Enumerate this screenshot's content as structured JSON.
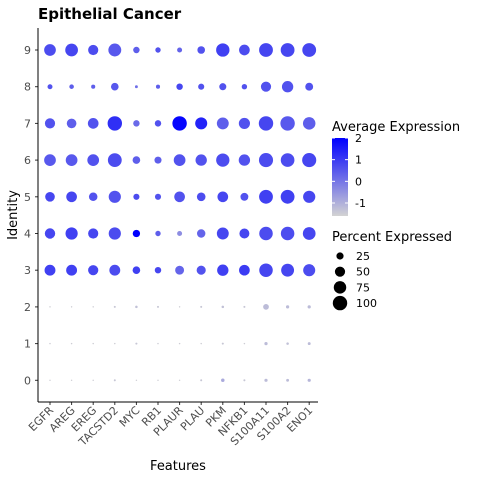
{
  "chart_data": {
    "type": "dotplot",
    "title": "Epithelial Cancer",
    "xlabel": "Features",
    "ylabel": "Identity",
    "features": [
      "EGFR",
      "AREG",
      "EREG",
      "TACSTD2",
      "MYC",
      "RB1",
      "PLAUR",
      "PLAU",
      "PKM",
      "NFKB1",
      "S100A11",
      "S100A2",
      "ENO1"
    ],
    "identities": [
      "0",
      "1",
      "2",
      "3",
      "4",
      "5",
      "6",
      "7",
      "8",
      "9"
    ],
    "color_scale": {
      "name": "Average Expression",
      "low_color": "#D3D3D3",
      "high_color": "#0000FF",
      "range": [
        -1.6,
        2.0
      ],
      "ticks": [
        2,
        1,
        0,
        -1
      ]
    },
    "size_scale": {
      "name": "Percent Expressed",
      "range": [
        0,
        100
      ],
      "ticks": [
        25,
        50,
        75,
        100
      ]
    },
    "grid": false,
    "legend_position": "right",
    "points": [
      {
        "feature": "EGFR",
        "identity": "0",
        "pct": 1,
        "avg": -1.5
      },
      {
        "feature": "AREG",
        "identity": "0",
        "pct": 1,
        "avg": -1.5
      },
      {
        "feature": "EREG",
        "identity": "0",
        "pct": 1,
        "avg": -1.5
      },
      {
        "feature": "TACSTD2",
        "identity": "0",
        "pct": 2,
        "avg": -1.4
      },
      {
        "feature": "MYC",
        "identity": "0",
        "pct": 1,
        "avg": -1.5
      },
      {
        "feature": "RB1",
        "identity": "0",
        "pct": 1,
        "avg": -1.5
      },
      {
        "feature": "PLAUR",
        "identity": "0",
        "pct": 1,
        "avg": -1.5
      },
      {
        "feature": "PLAU",
        "identity": "0",
        "pct": 2,
        "avg": -1.4
      },
      {
        "feature": "PKM",
        "identity": "0",
        "pct": 6,
        "avg": -0.9
      },
      {
        "feature": "NFKB1",
        "identity": "0",
        "pct": 2,
        "avg": -1.4
      },
      {
        "feature": "S100A11",
        "identity": "0",
        "pct": 5,
        "avg": -1.2
      },
      {
        "feature": "S100A2",
        "identity": "0",
        "pct": 4,
        "avg": -1.2
      },
      {
        "feature": "ENO1",
        "identity": "0",
        "pct": 5,
        "avg": -1.1
      },
      {
        "feature": "EGFR",
        "identity": "1",
        "pct": 1,
        "avg": -1.5
      },
      {
        "feature": "AREG",
        "identity": "1",
        "pct": 1,
        "avg": -1.5
      },
      {
        "feature": "EREG",
        "identity": "1",
        "pct": 1,
        "avg": -1.5
      },
      {
        "feature": "TACSTD2",
        "identity": "1",
        "pct": 1,
        "avg": -1.5
      },
      {
        "feature": "MYC",
        "identity": "1",
        "pct": 2,
        "avg": -1.4
      },
      {
        "feature": "RB1",
        "identity": "1",
        "pct": 1,
        "avg": -1.5
      },
      {
        "feature": "PLAUR",
        "identity": "1",
        "pct": 1,
        "avg": -1.5
      },
      {
        "feature": "PLAU",
        "identity": "1",
        "pct": 1,
        "avg": -1.5
      },
      {
        "feature": "PKM",
        "identity": "1",
        "pct": 2,
        "avg": -1.4
      },
      {
        "feature": "NFKB1",
        "identity": "1",
        "pct": 1,
        "avg": -1.5
      },
      {
        "feature": "S100A11",
        "identity": "1",
        "pct": 5,
        "avg": -1.2
      },
      {
        "feature": "S100A2",
        "identity": "1",
        "pct": 3,
        "avg": -1.3
      },
      {
        "feature": "ENO1",
        "identity": "1",
        "pct": 4,
        "avg": -1.2
      },
      {
        "feature": "EGFR",
        "identity": "2",
        "pct": 1,
        "avg": -1.5
      },
      {
        "feature": "AREG",
        "identity": "2",
        "pct": 1,
        "avg": -1.5
      },
      {
        "feature": "EREG",
        "identity": "2",
        "pct": 1,
        "avg": -1.5
      },
      {
        "feature": "TACSTD2",
        "identity": "2",
        "pct": 2,
        "avg": -1.4
      },
      {
        "feature": "MYC",
        "identity": "2",
        "pct": 3,
        "avg": -1.3
      },
      {
        "feature": "RB1",
        "identity": "2",
        "pct": 2,
        "avg": -1.4
      },
      {
        "feature": "PLAUR",
        "identity": "2",
        "pct": 1,
        "avg": -1.5
      },
      {
        "feature": "PLAU",
        "identity": "2",
        "pct": 2,
        "avg": -1.4
      },
      {
        "feature": "PKM",
        "identity": "2",
        "pct": 3,
        "avg": -1.3
      },
      {
        "feature": "NFKB1",
        "identity": "2",
        "pct": 2,
        "avg": -1.4
      },
      {
        "feature": "S100A11",
        "identity": "2",
        "pct": 16,
        "avg": -1.2
      },
      {
        "feature": "S100A2",
        "identity": "2",
        "pct": 5,
        "avg": -1.2
      },
      {
        "feature": "ENO1",
        "identity": "2",
        "pct": 5,
        "avg": -1.2
      },
      {
        "feature": "EGFR",
        "identity": "3",
        "pct": 57,
        "avg": 0.9
      },
      {
        "feature": "AREG",
        "identity": "3",
        "pct": 57,
        "avg": 0.9
      },
      {
        "feature": "EREG",
        "identity": "3",
        "pct": 50,
        "avg": 0.8
      },
      {
        "feature": "TACSTD2",
        "identity": "3",
        "pct": 57,
        "avg": 0.7
      },
      {
        "feature": "MYC",
        "identity": "3",
        "pct": 28,
        "avg": 0.9
      },
      {
        "feature": "RB1",
        "identity": "3",
        "pct": 20,
        "avg": 0.8
      },
      {
        "feature": "PLAUR",
        "identity": "3",
        "pct": 38,
        "avg": 0.3
      },
      {
        "feature": "PLAU",
        "identity": "3",
        "pct": 40,
        "avg": 0.6
      },
      {
        "feature": "PKM",
        "identity": "3",
        "pct": 62,
        "avg": 0.9
      },
      {
        "feature": "NFKB1",
        "identity": "3",
        "pct": 55,
        "avg": 1.0
      },
      {
        "feature": "S100A11",
        "identity": "3",
        "pct": 88,
        "avg": 0.8
      },
      {
        "feature": "S100A2",
        "identity": "3",
        "pct": 80,
        "avg": 0.8
      },
      {
        "feature": "ENO1",
        "identity": "3",
        "pct": 70,
        "avg": 0.7
      },
      {
        "feature": "EGFR",
        "identity": "4",
        "pct": 52,
        "avg": 0.8
      },
      {
        "feature": "AREG",
        "identity": "4",
        "pct": 72,
        "avg": 0.9
      },
      {
        "feature": "EREG",
        "identity": "4",
        "pct": 50,
        "avg": 0.8
      },
      {
        "feature": "TACSTD2",
        "identity": "4",
        "pct": 72,
        "avg": 0.7
      },
      {
        "feature": "MYC",
        "identity": "4",
        "pct": 26,
        "avg": 2.0
      },
      {
        "feature": "RB1",
        "identity": "4",
        "pct": 14,
        "avg": 0.4
      },
      {
        "feature": "PLAUR",
        "identity": "4",
        "pct": 12,
        "avg": -0.4
      },
      {
        "feature": "PLAU",
        "identity": "4",
        "pct": 34,
        "avg": 0.3
      },
      {
        "feature": "PKM",
        "identity": "4",
        "pct": 68,
        "avg": 0.8
      },
      {
        "feature": "NFKB1",
        "identity": "4",
        "pct": 48,
        "avg": 0.8
      },
      {
        "feature": "S100A11",
        "identity": "4",
        "pct": 88,
        "avg": 0.7
      },
      {
        "feature": "S100A2",
        "identity": "4",
        "pct": 88,
        "avg": 0.7
      },
      {
        "feature": "ENO1",
        "identity": "4",
        "pct": 78,
        "avg": 0.8
      },
      {
        "feature": "EGFR",
        "identity": "5",
        "pct": 45,
        "avg": 0.8
      },
      {
        "feature": "AREG",
        "identity": "5",
        "pct": 55,
        "avg": 0.8
      },
      {
        "feature": "EREG",
        "identity": "5",
        "pct": 35,
        "avg": 0.6
      },
      {
        "feature": "TACSTD2",
        "identity": "5",
        "pct": 72,
        "avg": 0.6
      },
      {
        "feature": "MYC",
        "identity": "5",
        "pct": 18,
        "avg": 0.7
      },
      {
        "feature": "RB1",
        "identity": "5",
        "pct": 18,
        "avg": 0.6
      },
      {
        "feature": "PLAUR",
        "identity": "5",
        "pct": 55,
        "avg": 0.6
      },
      {
        "feature": "PLAU",
        "identity": "5",
        "pct": 36,
        "avg": 0.7
      },
      {
        "feature": "PKM",
        "identity": "5",
        "pct": 55,
        "avg": 0.8
      },
      {
        "feature": "NFKB1",
        "identity": "5",
        "pct": 30,
        "avg": 0.6
      },
      {
        "feature": "S100A11",
        "identity": "5",
        "pct": 92,
        "avg": 0.9
      },
      {
        "feature": "S100A2",
        "identity": "5",
        "pct": 92,
        "avg": 0.9
      },
      {
        "feature": "ENO1",
        "identity": "5",
        "pct": 72,
        "avg": 0.8
      },
      {
        "feature": "EGFR",
        "identity": "6",
        "pct": 66,
        "avg": 0.5
      },
      {
        "feature": "AREG",
        "identity": "6",
        "pct": 66,
        "avg": 0.5
      },
      {
        "feature": "EREG",
        "identity": "6",
        "pct": 66,
        "avg": 0.6
      },
      {
        "feature": "TACSTD2",
        "identity": "6",
        "pct": 92,
        "avg": 0.7
      },
      {
        "feature": "MYC",
        "identity": "6",
        "pct": 28,
        "avg": 0.4
      },
      {
        "feature": "RB1",
        "identity": "6",
        "pct": 24,
        "avg": 0.4
      },
      {
        "feature": "PLAUR",
        "identity": "6",
        "pct": 66,
        "avg": 0.6
      },
      {
        "feature": "PLAU",
        "identity": "6",
        "pct": 62,
        "avg": 0.6
      },
      {
        "feature": "PKM",
        "identity": "6",
        "pct": 85,
        "avg": 0.7
      },
      {
        "feature": "NFKB1",
        "identity": "6",
        "pct": 62,
        "avg": 0.6
      },
      {
        "feature": "S100A11",
        "identity": "6",
        "pct": 96,
        "avg": 0.7
      },
      {
        "feature": "S100A2",
        "identity": "6",
        "pct": 90,
        "avg": 0.7
      },
      {
        "feature": "ENO1",
        "identity": "6",
        "pct": 96,
        "avg": 0.8
      },
      {
        "feature": "EGFR",
        "identity": "7",
        "pct": 50,
        "avg": 0.6
      },
      {
        "feature": "AREG",
        "identity": "7",
        "pct": 45,
        "avg": 0.4
      },
      {
        "feature": "EREG",
        "identity": "7",
        "pct": 55,
        "avg": 0.6
      },
      {
        "feature": "TACSTD2",
        "identity": "7",
        "pct": 100,
        "avg": 1.2
      },
      {
        "feature": "MYC",
        "identity": "7",
        "pct": 20,
        "avg": 0.2
      },
      {
        "feature": "RB1",
        "identity": "7",
        "pct": 20,
        "avg": 0.6
      },
      {
        "feature": "PLAUR",
        "identity": "7",
        "pct": 100,
        "avg": 1.9
      },
      {
        "feature": "PLAU",
        "identity": "7",
        "pct": 70,
        "avg": 1.4
      },
      {
        "feature": "PKM",
        "identity": "7",
        "pct": 68,
        "avg": 0.4
      },
      {
        "feature": "NFKB1",
        "identity": "7",
        "pct": 60,
        "avg": 0.6
      },
      {
        "feature": "S100A11",
        "identity": "7",
        "pct": 100,
        "avg": 0.8
      },
      {
        "feature": "S100A2",
        "identity": "7",
        "pct": 100,
        "avg": 0.5
      },
      {
        "feature": "ENO1",
        "identity": "7",
        "pct": 75,
        "avg": 0.4
      },
      {
        "feature": "EGFR",
        "identity": "8",
        "pct": 12,
        "avg": 0.6
      },
      {
        "feature": "AREG",
        "identity": "8",
        "pct": 10,
        "avg": 0.4
      },
      {
        "feature": "EREG",
        "identity": "8",
        "pct": 8,
        "avg": 0.4
      },
      {
        "feature": "TACSTD2",
        "identity": "8",
        "pct": 28,
        "avg": 0.5
      },
      {
        "feature": "MYC",
        "identity": "8",
        "pct": 4,
        "avg": 0.1
      },
      {
        "feature": "RB1",
        "identity": "8",
        "pct": 8,
        "avg": 0.4
      },
      {
        "feature": "PLAUR",
        "identity": "8",
        "pct": 20,
        "avg": 0.8
      },
      {
        "feature": "PLAU",
        "identity": "8",
        "pct": 18,
        "avg": 0.6
      },
      {
        "feature": "PKM",
        "identity": "8",
        "pct": 24,
        "avg": 0.6
      },
      {
        "feature": "NFKB1",
        "identity": "8",
        "pct": 14,
        "avg": 0.6
      },
      {
        "feature": "S100A11",
        "identity": "8",
        "pct": 50,
        "avg": 0.6
      },
      {
        "feature": "S100A2",
        "identity": "8",
        "pct": 62,
        "avg": 0.6
      },
      {
        "feature": "ENO1",
        "identity": "8",
        "pct": 30,
        "avg": 0.6
      },
      {
        "feature": "EGFR",
        "identity": "9",
        "pct": 66,
        "avg": 0.7
      },
      {
        "feature": "AREG",
        "identity": "9",
        "pct": 78,
        "avg": 0.8
      },
      {
        "feature": "EREG",
        "identity": "9",
        "pct": 50,
        "avg": 0.7
      },
      {
        "feature": "TACSTD2",
        "identity": "9",
        "pct": 80,
        "avg": 0.5
      },
      {
        "feature": "MYC",
        "identity": "9",
        "pct": 20,
        "avg": 0.4
      },
      {
        "feature": "RB1",
        "identity": "9",
        "pct": 14,
        "avg": 0.6
      },
      {
        "feature": "PLAUR",
        "identity": "9",
        "pct": 12,
        "avg": 0.3
      },
      {
        "feature": "PLAU",
        "identity": "9",
        "pct": 28,
        "avg": 0.6
      },
      {
        "feature": "PKM",
        "identity": "9",
        "pct": 86,
        "avg": 0.9
      },
      {
        "feature": "NFKB1",
        "identity": "9",
        "pct": 55,
        "avg": 0.7
      },
      {
        "feature": "S100A11",
        "identity": "9",
        "pct": 92,
        "avg": 0.8
      },
      {
        "feature": "S100A2",
        "identity": "9",
        "pct": 92,
        "avg": 0.8
      },
      {
        "feature": "ENO1",
        "identity": "9",
        "pct": 92,
        "avg": 0.8
      }
    ]
  }
}
